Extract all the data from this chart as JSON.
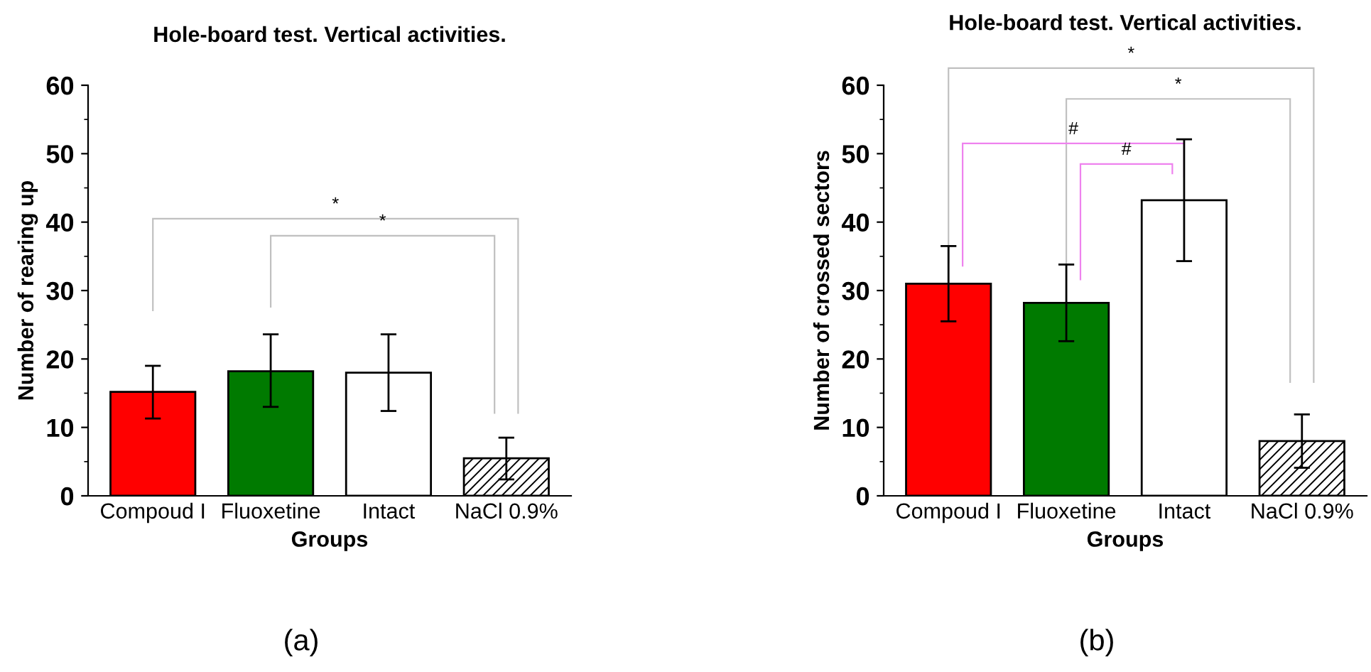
{
  "chart_data": [
    {
      "type": "bar",
      "title": "Hole-board test. Vertical activities.",
      "xlabel": "Groups",
      "ylabel": "Number of rearing up",
      "categories": [
        "Compoud I",
        "Fluoxetine",
        "Intact",
        "NaCl 0.9%"
      ],
      "values": [
        15.2,
        18.2,
        18.0,
        5.5
      ],
      "colors": [
        "#ff0000",
        "#007a00",
        "#ffffff",
        "#ffffff"
      ],
      "errors": [
        [
          11.3,
          19.0
        ],
        [
          13.0,
          23.6
        ],
        [
          12.4,
          23.6
        ],
        [
          2.4,
          8.5
        ]
      ],
      "ylim": [
        0,
        60
      ],
      "yticks": [
        0,
        10,
        20,
        30,
        40,
        50,
        60
      ],
      "grid": false,
      "legend": false,
      "annotations": [
        "*",
        "*",
        "(a)"
      ]
    },
    {
      "type": "bar",
      "title": "Hole-board test. Vertical activities.",
      "xlabel": "Groups",
      "ylabel": "Number of crossed sectors",
      "categories": [
        "Compoud I",
        "Fluoxetine",
        "Intact",
        "NaCl 0.9%"
      ],
      "values": [
        31.0,
        28.2,
        43.2,
        8.0
      ],
      "colors": [
        "#ff0000",
        "#007a00",
        "#ffffff",
        "#ffffff"
      ],
      "errors": [
        [
          25.5,
          36.5
        ],
        [
          22.6,
          33.8
        ],
        [
          34.3,
          52.1
        ],
        [
          4.1,
          11.9
        ]
      ],
      "ylim": [
        0,
        60
      ],
      "yticks": [
        0,
        10,
        20,
        30,
        40,
        50,
        60
      ],
      "grid": false,
      "legend": false,
      "annotations": [
        "*",
        "*",
        "#",
        "#",
        "(b)"
      ]
    }
  ]
}
